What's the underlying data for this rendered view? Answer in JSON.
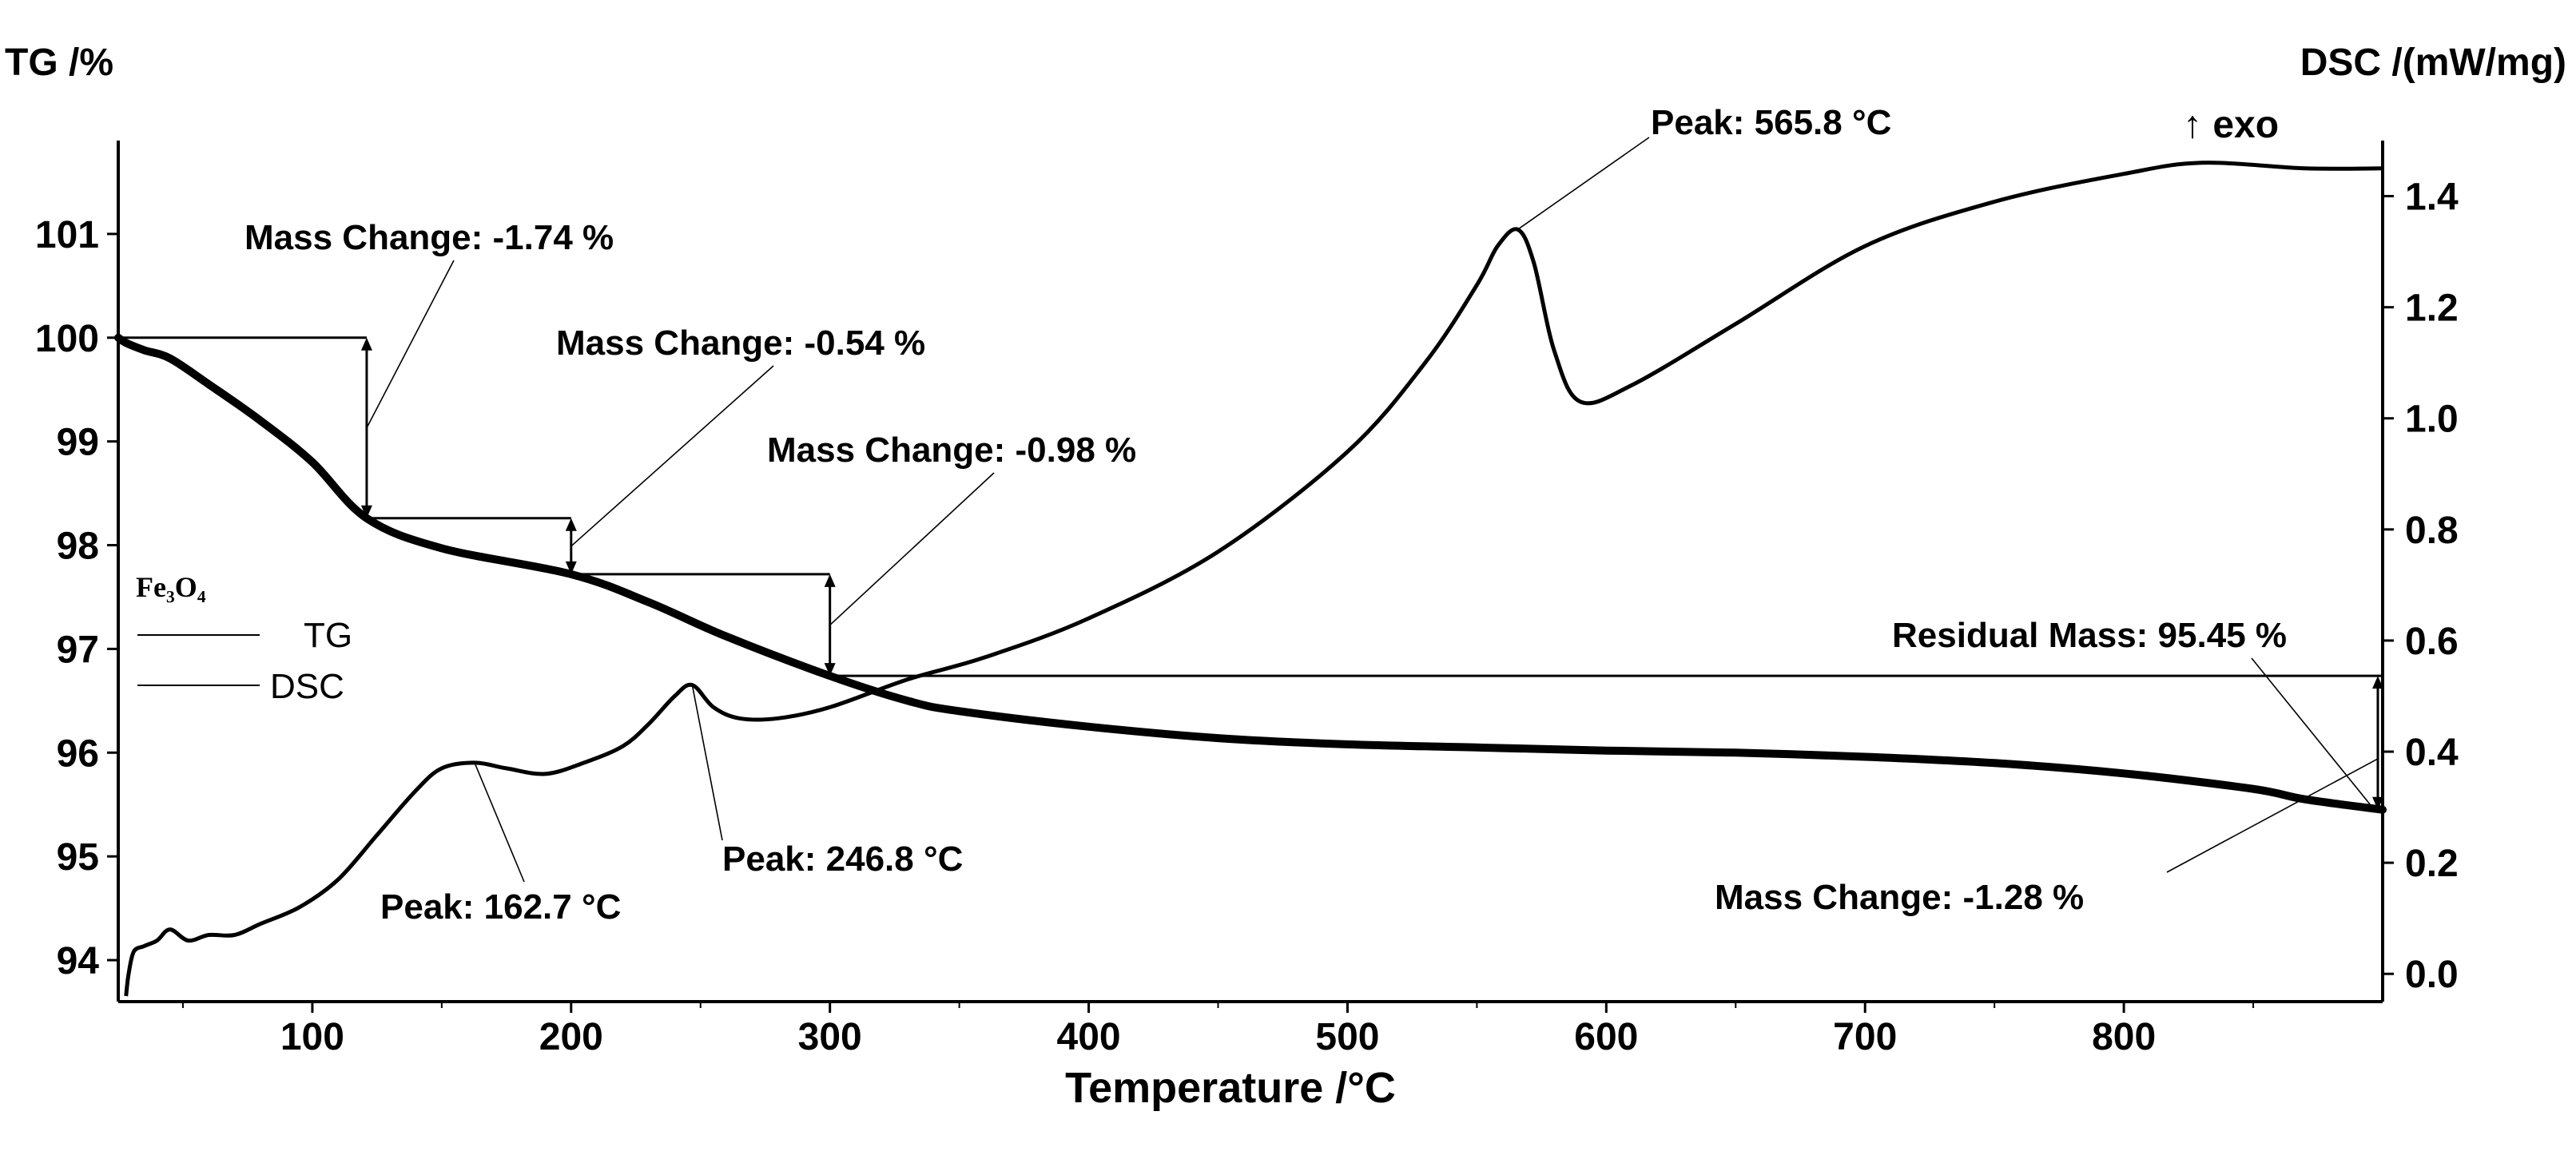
{
  "chart_data": {
    "type": "line",
    "sample": "Fe3O4",
    "xlabel": "Temperature /°C",
    "ylabel_left": "TG /%",
    "ylabel_right": "DSC /(mW/mg)",
    "exo_label": "↑ exo",
    "xlim": [
      25,
      900
    ],
    "ylim_left": [
      93.6,
      101.9
    ],
    "ylim_right": [
      -0.05,
      1.5
    ],
    "x_ticks": [
      100,
      200,
      300,
      400,
      500,
      600,
      700,
      800
    ],
    "y_ticks_left": [
      94,
      95,
      96,
      97,
      98,
      99,
      100,
      101
    ],
    "y_ticks_right": [
      "0.0",
      "0.2",
      "0.4",
      "0.6",
      "0.8",
      "1.0",
      "1.2",
      "1.4"
    ],
    "legend": {
      "title": "Fe₃O₄",
      "entries": [
        {
          "name": "TG"
        },
        {
          "name": "DSC"
        }
      ]
    },
    "series": [
      {
        "name": "TG",
        "axis": "left",
        "x": [
          25,
          28,
          35,
          45,
          60,
          80,
          100,
          121,
          150,
          200,
          230,
          260,
          300,
          330,
          350,
          400,
          450,
          500,
          550,
          600,
          650,
          700,
          750,
          800,
          850,
          870,
          900
        ],
        "y": [
          100.0,
          99.95,
          99.88,
          99.8,
          99.55,
          99.2,
          98.8,
          98.26,
          97.97,
          97.72,
          97.45,
          97.12,
          96.74,
          96.5,
          96.4,
          96.25,
          96.14,
          96.08,
          96.05,
          96.02,
          96.0,
          95.96,
          95.9,
          95.8,
          95.65,
          95.55,
          95.45
        ]
      },
      {
        "name": "DSC",
        "axis": "right",
        "x": [
          28,
          29,
          31,
          35,
          40,
          45,
          52,
          60,
          70,
          80,
          95,
          110,
          125,
          140,
          150,
          162.7,
          175,
          190,
          205,
          220,
          230,
          240,
          246.8,
          255,
          265,
          280,
          300,
          330,
          360,
          400,
          450,
          500,
          530,
          550,
          558,
          565.8,
          572,
          580,
          590,
          610,
          650,
          700,
          750,
          800,
          830,
          870,
          900
        ],
        "y": [
          -0.04,
          0.0,
          0.04,
          0.05,
          0.06,
          0.08,
          0.06,
          0.07,
          0.07,
          0.09,
          0.12,
          0.17,
          0.25,
          0.33,
          0.37,
          0.38,
          0.37,
          0.36,
          0.38,
          0.41,
          0.45,
          0.5,
          0.52,
          0.48,
          0.46,
          0.46,
          0.48,
          0.53,
          0.57,
          0.64,
          0.76,
          0.94,
          1.1,
          1.24,
          1.31,
          1.34,
          1.28,
          1.12,
          1.03,
          1.06,
          1.17,
          1.31,
          1.39,
          1.44,
          1.46,
          1.45,
          1.45
        ]
      }
    ],
    "annotations": {
      "mass_change_1": "Mass Change: -1.74 %",
      "mass_change_2": "Mass Change: -0.54 %",
      "mass_change_3": "Mass Change: -0.98 %",
      "mass_change_4": "Mass Change: -1.28 %",
      "residual_mass": "Residual Mass: 95.45 %",
      "peak_1": "Peak: 162.7 °C",
      "peak_2": "Peak: 246.8 °C",
      "peak_3": "Peak: 565.8 °C"
    },
    "annotation_values": {
      "steps_c": [
        121,
        200,
        300,
        900
      ],
      "step_levels_percent": [
        100.0,
        98.26,
        97.72,
        96.74,
        95.45
      ],
      "peak_temps_c": [
        162.7,
        246.8,
        565.8
      ],
      "peak_dsc": [
        0.38,
        0.52,
        1.34
      ]
    }
  }
}
